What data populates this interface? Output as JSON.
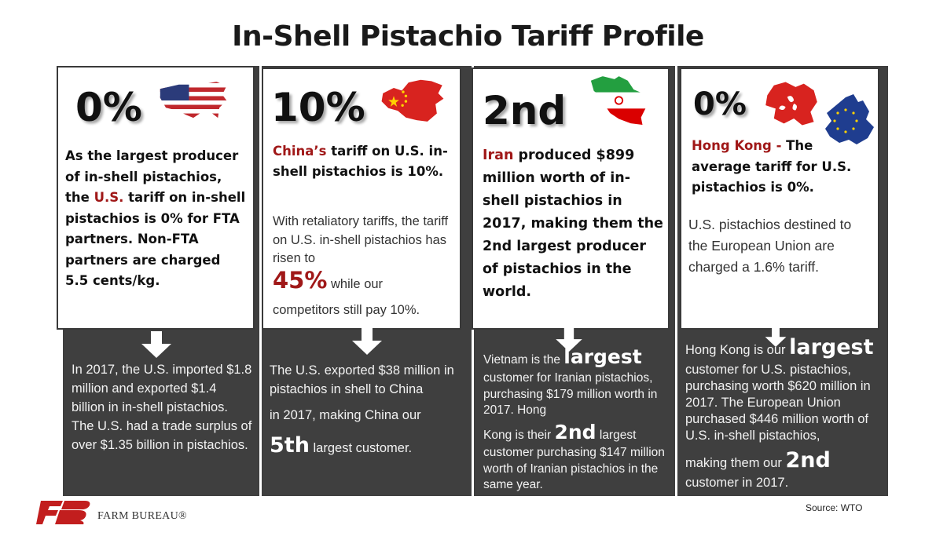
{
  "title": "In-Shell Pistachio Tariff Profile",
  "panels": [
    {
      "stat": "0%",
      "text_before": "As the largest producer of in-shell pistachios, the ",
      "highlight": "U.S.",
      "text_after": " tariff on in-shell pistachios is 0% for FTA partners. Non-FTA partners are charged 5.5 cents/kg.",
      "bottom": "In 2017, the U.S. imported $1.8 million and exported $1.4 billion in in-shell pistachios. The U.S. had a trade surplus of over $1.35 billion in pistachios."
    },
    {
      "stat": "10%",
      "highlight": "China’s",
      "text_bold": " tariff on U.S. in-shell pistachios is 10%.",
      "text_light_1": "With retaliatory tariffs, the tariff on U.S. in-shell pistachios has risen to",
      "highlight_big": "45%",
      "text_light_2a": " while our",
      "text_light_2b": "competitors still pay 10%.",
      "bottom_1": "The U.S. exported $38 million in pistachios in shell to China",
      "bottom_2": "in 2017, making China our",
      "bottom_big": "5th",
      "bottom_3": " largest customer."
    },
    {
      "stat": "2nd",
      "highlight": "Iran",
      "text_bold": " produced $899 million worth of in-shell pistachios in 2017, making them the 2nd largest producer of pistachios in the world.",
      "bottom_1": "Vietnam is the ",
      "bottom_big_1": "largest",
      "bottom_2": "customer for Iranian pistachios, purchasing $179 million worth in 2017. Hong",
      "bottom_3": "Kong is their ",
      "bottom_big_2": "2nd",
      "bottom_4": " largest",
      "bottom_5": "customer purchasing $147 million worth of Iranian pistachios in the same year."
    },
    {
      "stat": "0%",
      "highlight": "Hong Kong -",
      "text_bold": " The average tariff for U.S. pistachios is 0%.",
      "text_light": "U.S. pistachios destined to the European Union are charged a 1.6% tariff.",
      "bottom_1": "Hong Kong is our ",
      "bottom_big_1": "largest",
      "bottom_2": "customer for U.S. pistachios, purchasing worth $620 million in 2017. The European Union purchased $446 million worth of U.S. in-shell pistachios,",
      "bottom_3": "making them our ",
      "bottom_big_2": "2nd",
      "bottom_4": "customer in 2017."
    }
  ],
  "source": "Source: WTO",
  "logo": {
    "mark": "FB",
    "text": "FARM BUREAU®"
  },
  "colors": {
    "dark": "#3f3f3f",
    "accent_red": "#a01818"
  },
  "icons": [
    "usa-map-flag-icon",
    "china-map-flag-icon",
    "iran-map-flag-icon",
    "hong-kong-map-flag-icon",
    "eu-map-flag-icon",
    "down-arrow-icon"
  ]
}
